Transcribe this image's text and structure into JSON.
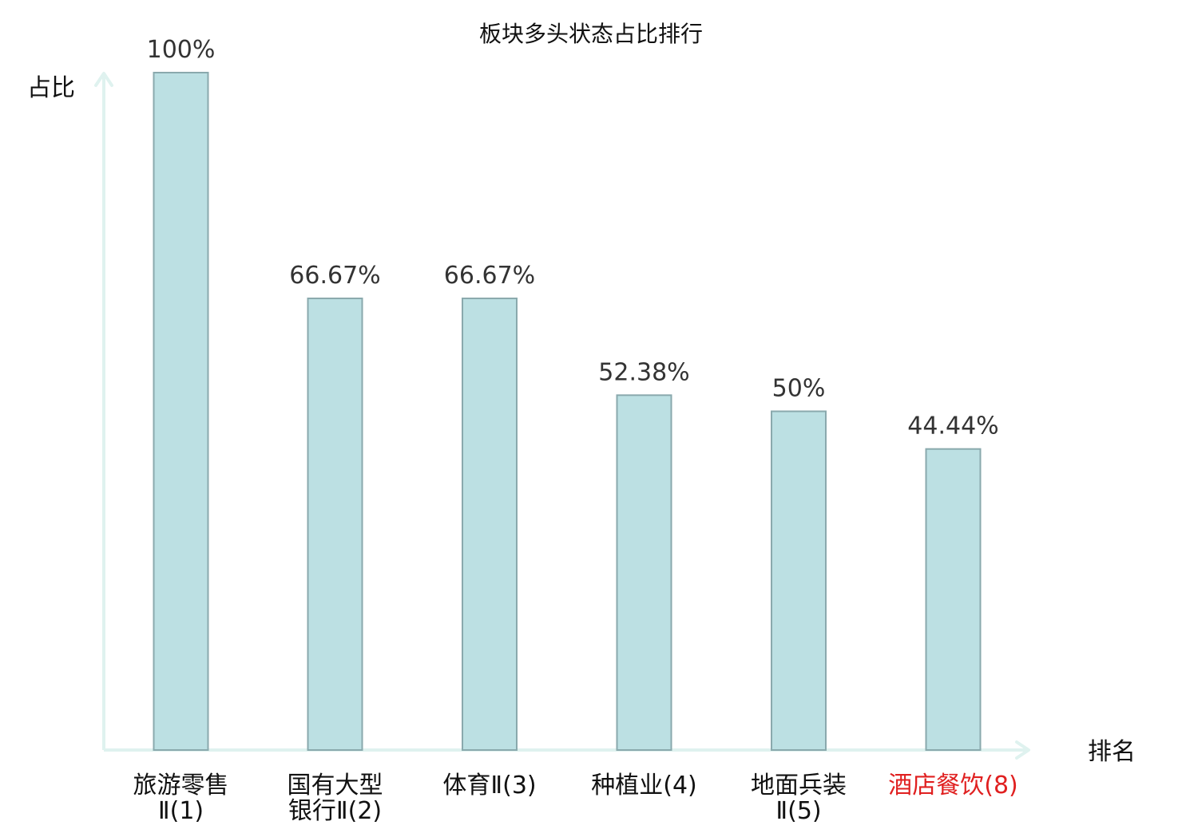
{
  "chart_data": {
    "type": "bar",
    "title": "板块多头状态占比排行",
    "xlabel": "排名",
    "ylabel": "占比",
    "ylim": [
      0,
      100
    ],
    "grid": false,
    "value_suffix": "%",
    "categories": [
      {
        "line1": "旅游零售",
        "line2": "Ⅱ(1)",
        "highlight": false
      },
      {
        "line1": "国有大型",
        "line2": "银行Ⅱ(2)",
        "highlight": false
      },
      {
        "line1": "体育Ⅱ(3)",
        "line2": "",
        "highlight": false
      },
      {
        "line1": "种植业(4)",
        "line2": "",
        "highlight": false
      },
      {
        "line1": "地面兵装",
        "line2": "Ⅱ(5)",
        "highlight": false
      },
      {
        "line1": "酒店餐饮(8)",
        "line2": "",
        "highlight": true
      }
    ],
    "values": [
      100,
      66.67,
      66.67,
      52.38,
      50,
      44.44
    ],
    "value_labels": [
      "100%",
      "66.67%",
      "66.67%",
      "52.38%",
      "50%",
      "44.44%"
    ],
    "colors": {
      "bar_fill": "#bce0e3",
      "bar_stroke": "#8aa9ad",
      "axis": "#dff2ef",
      "highlight_label": "#e02020",
      "normal_label": "#111111"
    }
  }
}
